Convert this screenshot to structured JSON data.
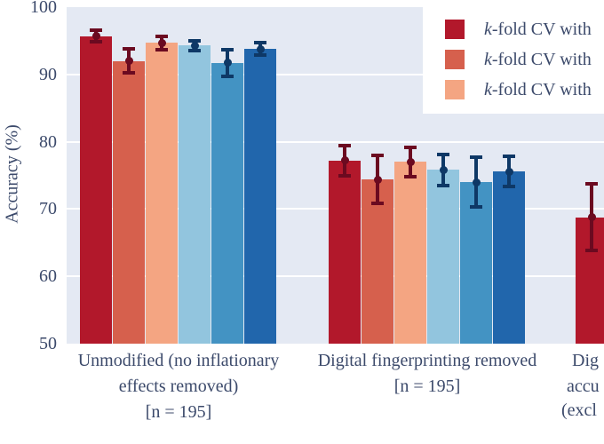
{
  "colors": {
    "figure_bg": "#ffffff",
    "plot_bg": "#e4e9f3",
    "grid": "#ffffff",
    "text": "#3c4a6b",
    "legend_bg": "#ffffff",
    "error_warm": "#6b0a20",
    "error_cool": "#0e3866"
  },
  "legend": {
    "items": [
      {
        "prefix": "k",
        "label": "-fold CV with",
        "color": "#b2182b"
      },
      {
        "prefix": "k",
        "label": "-fold CV with",
        "color": "#d6604d"
      },
      {
        "prefix": "k",
        "label": "-fold CV with",
        "color": "#f4a582"
      }
    ]
  },
  "x_axis": {
    "groups": [
      {
        "lines": [
          "Unmodified (no inflationary",
          "effects removed)",
          "[n = 195]"
        ]
      },
      {
        "lines": [
          "Digital fingerprinting removed",
          "[n = 195]"
        ]
      },
      {
        "lines": [
          "Dig",
          "accu",
          "(excl"
        ]
      }
    ]
  },
  "chart_data": {
    "type": "bar",
    "title": "",
    "xlabel": "",
    "ylabel": "Accuracy (%)",
    "ylim": [
      50,
      100
    ],
    "yticks": [
      50,
      60,
      70,
      80,
      90,
      100
    ],
    "grid": true,
    "legend_position": "upper right",
    "categories": [
      "Unmodified (no inflationary effects removed) [n = 195]",
      "Digital fingerprinting removed [n = 195]",
      "Dig accu (excl"
    ],
    "series": [
      {
        "name": "k-fold CV with",
        "color": "#b2182b",
        "values": [
          95.7,
          77.2,
          68.8
        ],
        "errors": [
          0.9,
          2.2,
          5.0
        ]
      },
      {
        "name": "k-fold CV with",
        "color": "#d6604d",
        "values": [
          92.0,
          74.4,
          null
        ],
        "errors": [
          1.8,
          3.6,
          null
        ]
      },
      {
        "name": "k-fold CV with",
        "color": "#f4a582",
        "values": [
          94.7,
          77.0,
          null
        ],
        "errors": [
          1.0,
          2.2,
          null
        ]
      },
      {
        "name": "",
        "color": "#92c5de",
        "values": [
          94.3,
          75.8,
          null
        ],
        "errors": [
          0.7,
          2.3,
          null
        ]
      },
      {
        "name": "",
        "color": "#4393c3",
        "values": [
          91.7,
          74.0,
          null
        ],
        "errors": [
          2.0,
          3.7,
          null
        ]
      },
      {
        "name": "",
        "color": "#2166ac",
        "values": [
          93.8,
          75.6,
          null
        ],
        "errors": [
          0.9,
          2.2,
          null
        ]
      }
    ]
  }
}
